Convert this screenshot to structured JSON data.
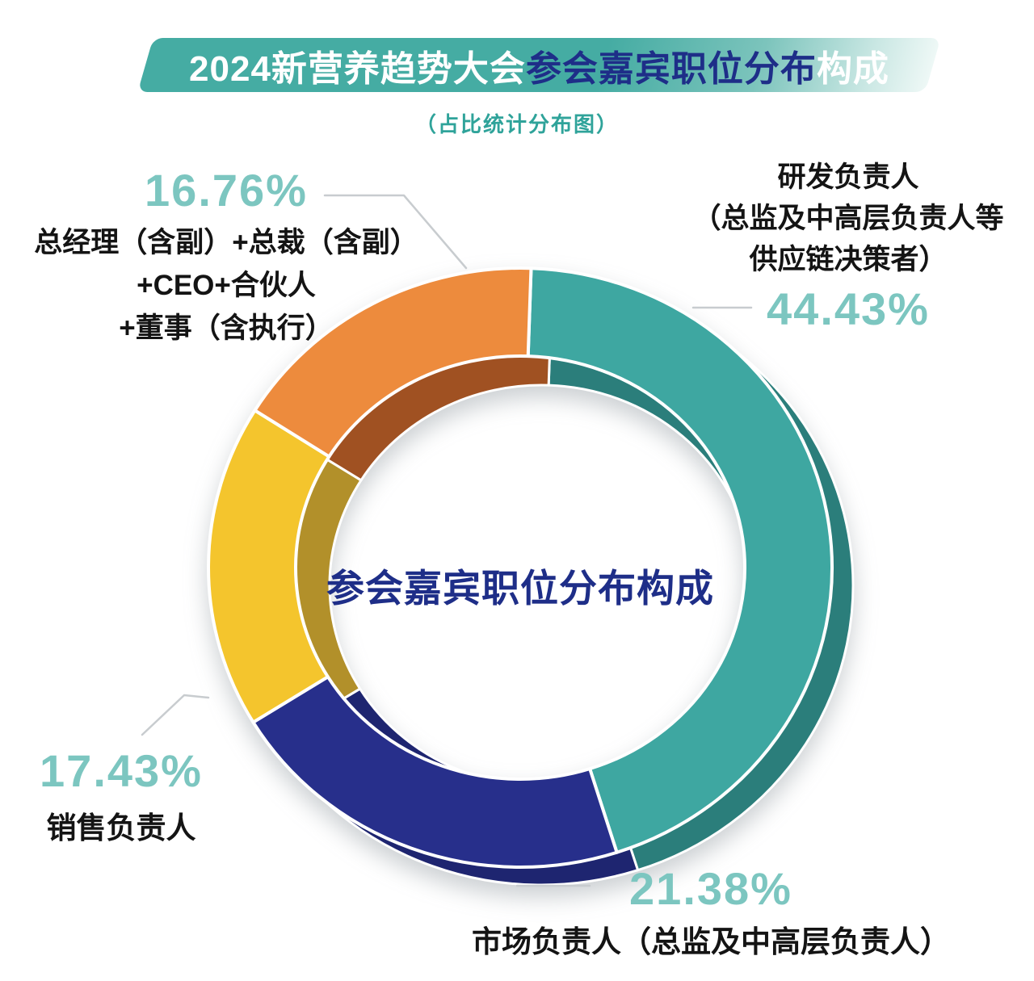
{
  "header": {
    "title_leading": "2024新营养趋势大会",
    "title_highlight": "参会嘉宾职位分布",
    "title_trailing": "构成",
    "subtitle": "（占比统计分布图）"
  },
  "center_label": "参会嘉宾职位分布构成",
  "colors": {
    "banner_teal": "#45aca3",
    "banner_fade": "#eef8f6",
    "title_navy": "#1e2e88",
    "percent_teal": "#7cc6c0",
    "subtitle_teal": "#2fa39a",
    "label_text": "#141414",
    "leader_line": "#c8cccf",
    "segment_stroke": "#ffffff"
  },
  "chart_data": {
    "type": "pie",
    "variant": "donut",
    "title": "参会嘉宾职位分布构成",
    "subtitle": "（占比统计分布图）",
    "start_angle_deg": 2,
    "clockwise": true,
    "legend": false,
    "units": "%",
    "segments": [
      {
        "name": "研发负责人（总监及中高层负责人等供应链决策者）",
        "label_lines": [
          "研发负责人",
          "（总监及中高层负责人等",
          "供应链决策者）"
        ],
        "value": 44.43,
        "display": "44.43%",
        "color": "#3ea7a1",
        "shade": "#2b7e7b"
      },
      {
        "name": "市场负责人（总监及中高层负责人）",
        "label_lines": [
          "市场负责人（总监及中高层负责人）"
        ],
        "value": 21.38,
        "display": "21.38%",
        "color": "#272f8b",
        "shade": "#1e2570"
      },
      {
        "name": "销售负责人",
        "label_lines": [
          "销售负责人"
        ],
        "value": 17.43,
        "display": "17.43%",
        "color": "#f4c52d",
        "shade": "#b2902a"
      },
      {
        "name": "总经理（含副）+总裁（含副）+CEO+合伙人+董事（含执行）",
        "label_lines": [
          "总经理（含副）+总裁（含副）",
          "+CEO+合伙人",
          "+董事（含执行）"
        ],
        "value": 16.76,
        "display": "16.76%",
        "color": "#ed8b3d",
        "shade": "#a05122"
      }
    ]
  }
}
